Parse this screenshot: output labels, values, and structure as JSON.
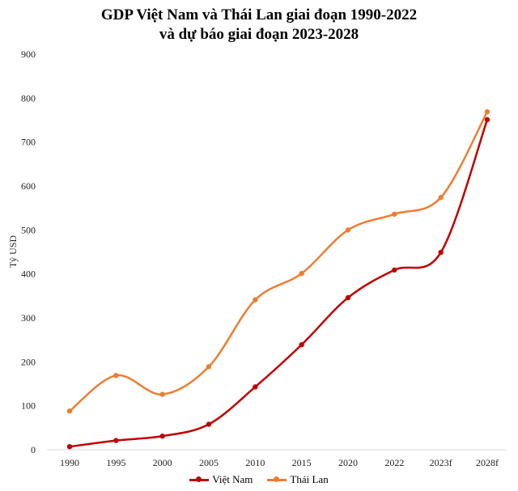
{
  "chart_data": {
    "type": "line",
    "title": "GDP Việt Nam và Thái Lan giai đoạn 1990-2022",
    "subtitle": "và dự báo giai đoạn 2023-2028",
    "xlabel": "",
    "ylabel": "Tỷ USD",
    "ylim": [
      0,
      900
    ],
    "yticks": [
      0,
      100,
      200,
      300,
      400,
      500,
      600,
      700,
      800,
      900
    ],
    "grid": false,
    "legend": "bottom",
    "categories": [
      "1990",
      "1995",
      "2000",
      "2005",
      "2010",
      "2015",
      "2020",
      "2022",
      "2023f",
      "2028f"
    ],
    "series": [
      {
        "name": "Việt Nam",
        "color": "#C00000",
        "values": [
          7,
          21,
          31,
          58,
          143,
          239,
          346,
          409,
          449,
          751
        ]
      },
      {
        "name": "Thái Lan",
        "color": "#ED7D31",
        "values": [
          88,
          169,
          126,
          189,
          341,
          401,
          500,
          536,
          574,
          769
        ]
      }
    ]
  }
}
